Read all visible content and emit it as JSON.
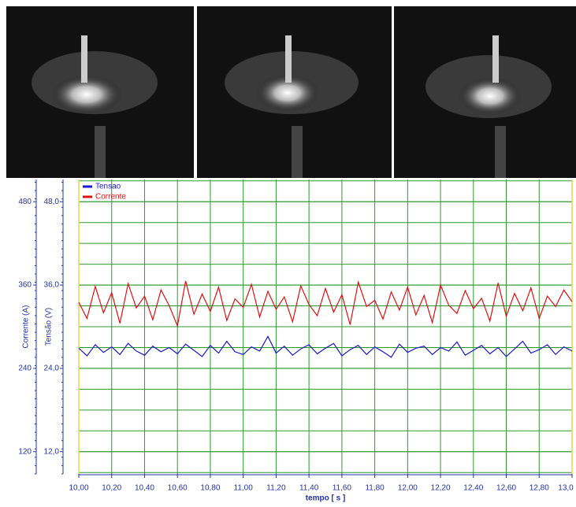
{
  "chart_data": {
    "type": "line",
    "x_label": "tempo [ s ]",
    "y_label": "Tensão (V)",
    "y2_label": "Corrente (A)",
    "x": [
      10,
      10.05,
      10.1,
      10.15,
      10.2,
      10.25,
      10.3,
      10.35,
      10.4,
      10.45,
      10.5,
      10.55,
      10.6,
      10.65,
      10.7,
      10.75,
      10.8,
      10.85,
      10.9,
      10.95,
      11,
      11.05,
      11.1,
      11.15,
      11.2,
      11.25,
      11.3,
      11.35,
      11.4,
      11.45,
      11.5,
      11.55,
      11.6,
      11.65,
      11.7,
      11.75,
      11.8,
      11.85,
      11.9,
      11.95,
      12,
      12.05,
      12.1,
      12.15,
      12.2,
      12.25,
      12.3,
      12.35,
      12.4,
      12.45,
      12.5,
      12.55,
      12.6,
      12.65,
      12.7,
      12.75,
      12.8,
      12.85,
      12.9,
      12.95,
      13
    ],
    "series": [
      {
        "name": "Tensao",
        "color": "#1a1ad0",
        "axis": "y",
        "values": [
          26.9,
          25.8,
          27.4,
          26.3,
          27.1,
          26.0,
          27.6,
          26.5,
          25.9,
          27.2,
          26.4,
          27.0,
          26.1,
          27.5,
          26.6,
          25.7,
          27.3,
          26.2,
          27.9,
          26.4,
          26.0,
          27.1,
          26.5,
          28.6,
          26.2,
          27.2,
          25.9,
          26.8,
          27.4,
          26.1,
          26.9,
          27.6,
          25.8,
          26.7,
          27.3,
          26.0,
          27.1,
          26.4,
          25.6,
          27.5,
          26.3,
          26.9,
          27.2,
          26.0,
          27.0,
          26.5,
          27.8,
          25.9,
          26.6,
          27.3,
          26.1,
          27.0,
          25.7,
          26.8,
          27.9,
          26.2,
          26.7,
          27.4,
          26.0,
          27.1,
          26.5
        ]
      },
      {
        "name": "Corrente",
        "color": "#e01010",
        "axis": "y2",
        "values": [
          335,
          312,
          358,
          320,
          349,
          305,
          362,
          327,
          344,
          310,
          353,
          330,
          301,
          366,
          318,
          347,
          322,
          357,
          309,
          340,
          328,
          361,
          314,
          351,
          325,
          343,
          307,
          359,
          332,
          316,
          355,
          321,
          346,
          303,
          364,
          329,
          338,
          311,
          350,
          324,
          357,
          317,
          345,
          306,
          360,
          331,
          319,
          352,
          326,
          341,
          308,
          363,
          315,
          348,
          323,
          356,
          312,
          344,
          329,
          353,
          336
        ]
      }
    ],
    "xlim": [
      10,
      13
    ],
    "xticks": [
      {
        "value": 10,
        "label": "10,00"
      },
      {
        "value": 10.2,
        "label": "10,20"
      },
      {
        "value": 10.4,
        "label": "10,40"
      },
      {
        "value": 10.6,
        "label": "10,60"
      },
      {
        "value": 10.8,
        "label": "10,80"
      },
      {
        "value": 11,
        "label": "11,00"
      },
      {
        "value": 11.2,
        "label": "11,20"
      },
      {
        "value": 11.4,
        "label": "11,40"
      },
      {
        "value": 11.6,
        "label": "11,60"
      },
      {
        "value": 11.8,
        "label": "11,80"
      },
      {
        "value": 12,
        "label": "12,00"
      },
      {
        "value": 12.2,
        "label": "12,20"
      },
      {
        "value": 12.4,
        "label": "12,40"
      },
      {
        "value": 12.6,
        "label": "12,60"
      },
      {
        "value": 12.8,
        "label": "12,80"
      },
      {
        "value": 13,
        "label": "13,0"
      }
    ],
    "ylim": [
      8.8,
      51.2
    ],
    "yticks": [
      {
        "value": 12,
        "label": "12,0"
      },
      {
        "value": 24,
        "label": "24,0"
      },
      {
        "value": 36,
        "label": "36,0"
      },
      {
        "value": 48,
        "label": "48,0"
      }
    ],
    "y2lim": [
      88,
      512
    ],
    "y2ticks": [
      120,
      240,
      360,
      480
    ],
    "grid": true,
    "grid_color": "#2e9a2e",
    "legend": "top-left"
  }
}
